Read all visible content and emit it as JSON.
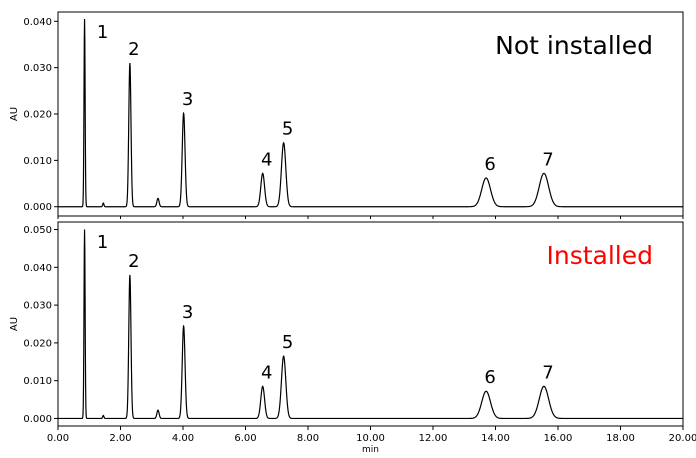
{
  "chart_data": [
    {
      "type": "line",
      "title": "Not installed",
      "title_color": "#000000",
      "ylabel": "AU",
      "xlabel": "",
      "xlim": [
        0,
        20
      ],
      "ylim": [
        -0.002,
        0.042
      ],
      "yticks": [
        "0.000",
        "0.010",
        "0.020",
        "0.030",
        "0.040"
      ],
      "yticks_values": [
        0,
        0.01,
        0.02,
        0.03,
        0.04
      ],
      "xticks": [],
      "line_color": "#000000",
      "peaks": [
        {
          "label": "1",
          "x": 0.85,
          "height": 0.0405,
          "width": 0.018
        },
        {
          "label": "2",
          "x": 2.3,
          "height": 0.031,
          "width": 0.035
        },
        {
          "label": "3",
          "x": 4.02,
          "height": 0.0202,
          "width": 0.045
        },
        {
          "label": "4",
          "x": 6.55,
          "height": 0.0072,
          "width": 0.06
        },
        {
          "label": "5",
          "x": 7.22,
          "height": 0.0138,
          "width": 0.07
        },
        {
          "label": "6",
          "x": 13.7,
          "height": 0.0062,
          "width": 0.14
        },
        {
          "label": "7",
          "x": 15.55,
          "height": 0.0072,
          "width": 0.15
        }
      ],
      "minor_peaks": [
        {
          "x": 1.45,
          "height": 0.0008,
          "width": 0.02
        },
        {
          "x": 3.2,
          "height": 0.0018,
          "width": 0.035
        }
      ]
    },
    {
      "type": "line",
      "title": "Installed",
      "title_color": "#ff0000",
      "ylabel": "AU",
      "xlabel": "min",
      "xlim": [
        0,
        20
      ],
      "ylim": [
        -0.002,
        0.052
      ],
      "yticks": [
        "0.000",
        "0.010",
        "0.020",
        "0.030",
        "0.040",
        "0.050"
      ],
      "yticks_values": [
        0,
        0.01,
        0.02,
        0.03,
        0.04,
        0.05
      ],
      "xticks": [
        "0.00",
        "2.00",
        "4.00",
        "6.00",
        "8.00",
        "10.00",
        "12.00",
        "14.00",
        "16.00",
        "18.00",
        "20.00"
      ],
      "xticks_values": [
        0,
        2,
        4,
        6,
        8,
        10,
        12,
        14,
        16,
        18,
        20
      ],
      "line_color": "#000000",
      "peaks": [
        {
          "label": "1",
          "x": 0.85,
          "height": 0.05,
          "width": 0.018
        },
        {
          "label": "2",
          "x": 2.3,
          "height": 0.038,
          "width": 0.035
        },
        {
          "label": "3",
          "x": 4.02,
          "height": 0.0245,
          "width": 0.045
        },
        {
          "label": "4",
          "x": 6.55,
          "height": 0.0085,
          "width": 0.06
        },
        {
          "label": "5",
          "x": 7.22,
          "height": 0.0165,
          "width": 0.07
        },
        {
          "label": "6",
          "x": 13.7,
          "height": 0.0072,
          "width": 0.14
        },
        {
          "label": "7",
          "x": 15.55,
          "height": 0.0085,
          "width": 0.15
        }
      ],
      "minor_peaks": [
        {
          "x": 1.45,
          "height": 0.0008,
          "width": 0.02
        },
        {
          "x": 3.2,
          "height": 0.0022,
          "width": 0.035
        }
      ]
    }
  ]
}
